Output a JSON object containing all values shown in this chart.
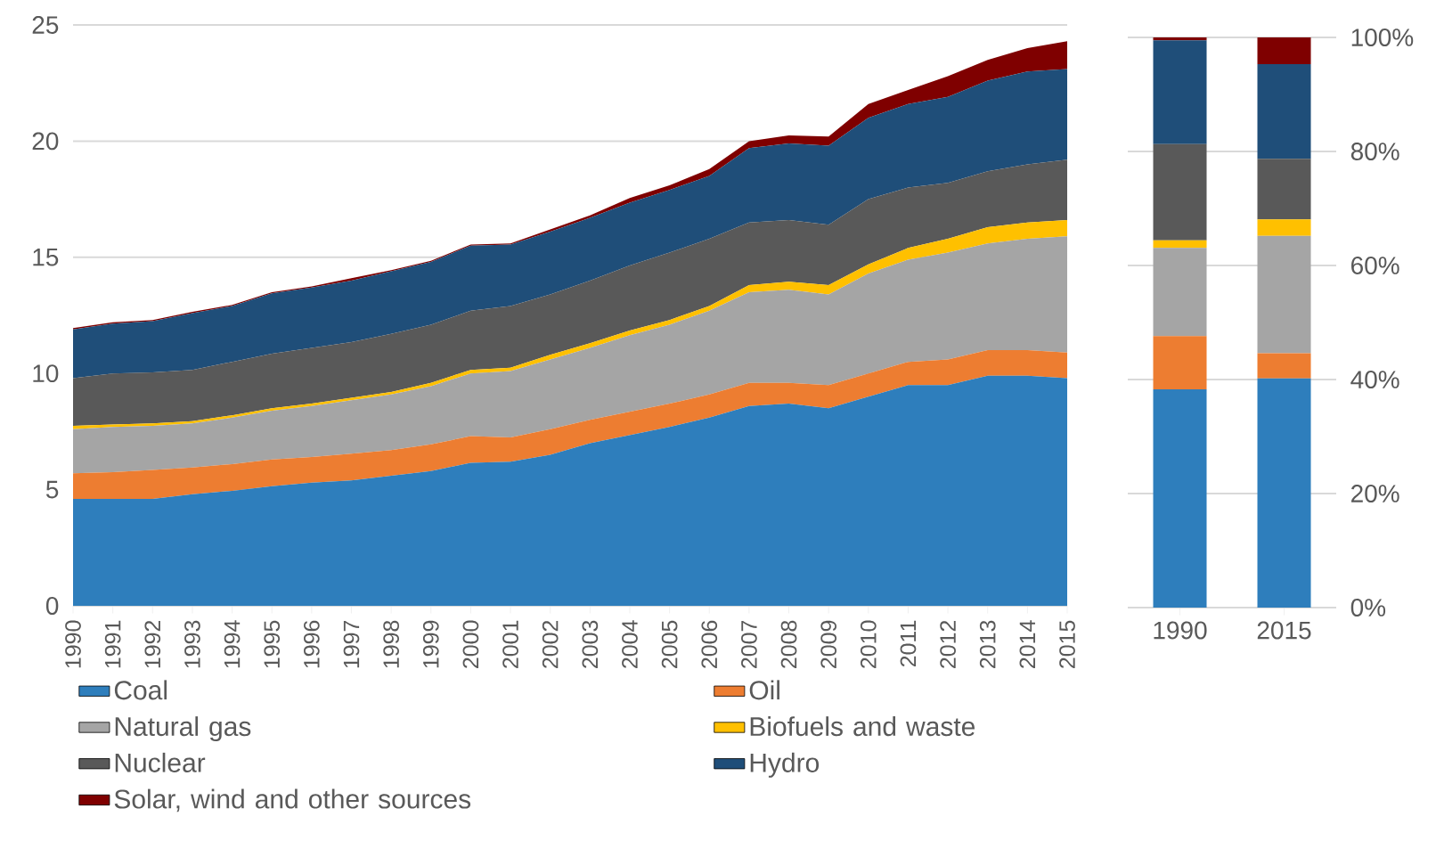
{
  "chart_data": [
    {
      "type": "area",
      "stacked": true,
      "x": [
        1990,
        1991,
        1992,
        1993,
        1994,
        1995,
        1996,
        1997,
        1998,
        1999,
        2000,
        2001,
        2002,
        2003,
        2004,
        2005,
        2006,
        2007,
        2008,
        2009,
        2010,
        2011,
        2012,
        2013,
        2014,
        2015
      ],
      "xlim": [
        1990,
        2015
      ],
      "xticks": [
        1990,
        1991,
        1992,
        1993,
        1994,
        1995,
        1996,
        1997,
        1998,
        1999,
        2000,
        2001,
        2002,
        2003,
        2004,
        2005,
        2006,
        2007,
        2008,
        2009,
        2010,
        2011,
        2012,
        2013,
        2014,
        2015
      ],
      "ylim": [
        0,
        25
      ],
      "yticks": [
        0,
        5,
        10,
        15,
        20,
        25
      ],
      "grid": "y",
      "legend": "bottom",
      "series": [
        {
          "name": "Coal",
          "color": "#2e7ebc",
          "values": [
            4.6,
            4.6,
            4.6,
            4.8,
            4.95,
            5.15,
            5.3,
            5.4,
            5.6,
            5.8,
            6.15,
            6.2,
            6.5,
            7.0,
            7.35,
            7.7,
            8.1,
            8.6,
            8.7,
            8.5,
            9.0,
            9.5,
            9.5,
            9.9,
            9.9,
            9.8
          ]
        },
        {
          "name": "Oil",
          "color": "#ed7d31",
          "values": [
            1.1,
            1.15,
            1.25,
            1.15,
            1.15,
            1.15,
            1.1,
            1.15,
            1.1,
            1.15,
            1.15,
            1.05,
            1.1,
            1.0,
            1.0,
            1.0,
            1.0,
            1.0,
            0.9,
            1.0,
            1.0,
            1.0,
            1.1,
            1.1,
            1.1,
            1.1
          ]
        },
        {
          "name": "Natural gas",
          "color": "#a5a5a5",
          "values": [
            1.9,
            1.95,
            1.9,
            1.9,
            2.0,
            2.1,
            2.2,
            2.3,
            2.4,
            2.5,
            2.7,
            2.85,
            3.0,
            3.1,
            3.3,
            3.4,
            3.6,
            3.9,
            4.0,
            3.9,
            4.3,
            4.4,
            4.6,
            4.6,
            4.8,
            5.0
          ]
        },
        {
          "name": "Biofuels and waste",
          "color": "#ffc000",
          "values": [
            0.15,
            0.1,
            0.1,
            0.1,
            0.1,
            0.1,
            0.1,
            0.1,
            0.1,
            0.15,
            0.15,
            0.15,
            0.2,
            0.2,
            0.2,
            0.2,
            0.2,
            0.3,
            0.35,
            0.4,
            0.4,
            0.5,
            0.6,
            0.7,
            0.7,
            0.7
          ]
        },
        {
          "name": "Nuclear",
          "color": "#595959",
          "values": [
            2.05,
            2.2,
            2.2,
            2.2,
            2.3,
            2.35,
            2.4,
            2.4,
            2.5,
            2.5,
            2.55,
            2.65,
            2.6,
            2.7,
            2.8,
            2.9,
            2.9,
            2.7,
            2.65,
            2.6,
            2.8,
            2.6,
            2.4,
            2.4,
            2.5,
            2.6
          ]
        },
        {
          "name": "Hydro",
          "color": "#1f4e79",
          "values": [
            2.1,
            2.15,
            2.2,
            2.45,
            2.4,
            2.6,
            2.6,
            2.65,
            2.7,
            2.7,
            2.8,
            2.65,
            2.7,
            2.7,
            2.7,
            2.7,
            2.7,
            3.2,
            3.3,
            3.4,
            3.5,
            3.6,
            3.7,
            3.9,
            4.0,
            3.9
          ]
        },
        {
          "name": "Solar, wind and other sources",
          "color": "#7f0000",
          "values": [
            0.05,
            0.05,
            0.05,
            0.05,
            0.05,
            0.05,
            0.05,
            0.1,
            0.05,
            0.05,
            0.05,
            0.05,
            0.1,
            0.1,
            0.2,
            0.2,
            0.3,
            0.3,
            0.35,
            0.4,
            0.6,
            0.6,
            0.9,
            0.9,
            1.0,
            1.2
          ]
        }
      ]
    },
    {
      "type": "bar",
      "stacked": true,
      "categories": [
        "1990",
        "2015"
      ],
      "ylim": [
        0,
        100
      ],
      "yticks": [
        {
          "value": 0,
          "label": "0%"
        },
        {
          "value": 20,
          "label": "20%"
        },
        {
          "value": 40,
          "label": "40%"
        },
        {
          "value": 60,
          "label": "60%"
        },
        {
          "value": 80,
          "label": "80%"
        },
        {
          "value": 100,
          "label": "100%"
        }
      ],
      "grid": "y",
      "series": [
        {
          "color": "#2e7ebc",
          "values": [
            38.3,
            40.2
          ]
        },
        {
          "color": "#ed7d31",
          "values": [
            9.3,
            4.4
          ]
        },
        {
          "color": "#a5a5a5",
          "values": [
            15.5,
            20.6
          ]
        },
        {
          "color": "#ffc000",
          "values": [
            1.3,
            2.9
          ]
        },
        {
          "color": "#595959",
          "values": [
            16.9,
            10.6
          ]
        },
        {
          "color": "#1f4e79",
          "values": [
            18.2,
            16.6
          ]
        },
        {
          "color": "#7f0000",
          "values": [
            0.5,
            4.7
          ]
        }
      ]
    }
  ]
}
